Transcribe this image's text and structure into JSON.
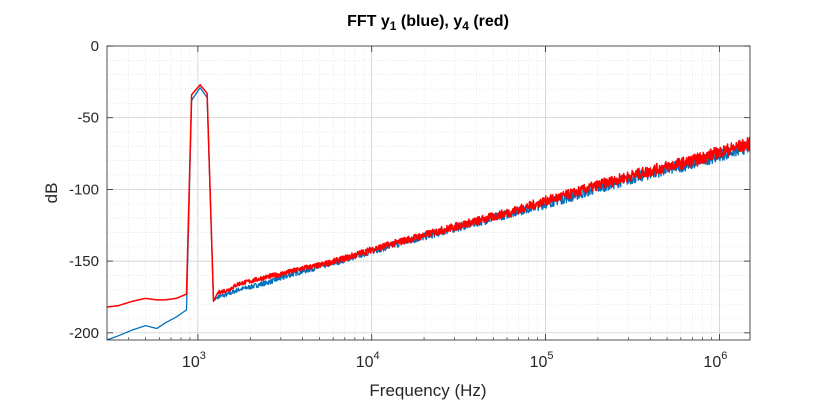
{
  "chart_data": {
    "type": "line",
    "title_parts": [
      {
        "text": "FFT y",
        "sub": false
      },
      {
        "text": "1",
        "sub": true
      },
      {
        "text": " (blue), y",
        "sub": false
      },
      {
        "text": "4",
        "sub": true
      },
      {
        "text": " (red)",
        "sub": false
      }
    ],
    "xlabel": "Frequency (Hz)",
    "ylabel": "dB",
    "x_scale": "log",
    "xlim": [
      300,
      1500000
    ],
    "ylim": [
      -205,
      0
    ],
    "grid": true,
    "minor_grid": true,
    "legend": "none",
    "x_ticks": [
      {
        "value": 1000,
        "base": "10",
        "exp": "3"
      },
      {
        "value": 10000,
        "base": "10",
        "exp": "4"
      },
      {
        "value": 100000,
        "base": "10",
        "exp": "5"
      },
      {
        "value": 1000000,
        "base": "10",
        "exp": "6"
      }
    ],
    "y_ticks": [
      {
        "value": 0,
        "label": "0"
      },
      {
        "value": -50,
        "label": "-50"
      },
      {
        "value": -100,
        "label": "-100"
      },
      {
        "value": -150,
        "label": "-150"
      },
      {
        "value": -200,
        "label": "-200"
      }
    ],
    "series": [
      {
        "color": "#0072BD",
        "noise_amplitude_db": 3.5,
        "points": [
          [
            300,
            -205
          ],
          [
            350,
            -202
          ],
          [
            420,
            -198
          ],
          [
            500,
            -195
          ],
          [
            580,
            -197
          ],
          [
            650,
            -193
          ],
          [
            750,
            -189
          ],
          [
            860,
            -184
          ],
          [
            920,
            -38
          ],
          [
            1030,
            -29
          ],
          [
            1130,
            -36
          ],
          [
            1230,
            -178
          ],
          [
            1300,
            -175
          ],
          [
            1500,
            -173
          ],
          [
            1700,
            -170
          ],
          [
            2000,
            -168
          ],
          [
            2500,
            -165
          ],
          [
            3000,
            -162
          ],
          [
            3500,
            -159
          ],
          [
            4000,
            -157
          ],
          [
            5000,
            -154
          ],
          [
            7000,
            -149
          ],
          [
            10000,
            -143
          ],
          [
            15000,
            -137
          ],
          [
            20000,
            -133
          ],
          [
            30000,
            -127
          ],
          [
            50000,
            -120
          ],
          [
            70000,
            -115
          ],
          [
            100000,
            -110
          ],
          [
            150000,
            -104
          ],
          [
            200000,
            -99
          ],
          [
            300000,
            -93
          ],
          [
            500000,
            -86
          ],
          [
            700000,
            -82
          ],
          [
            1000000,
            -76
          ],
          [
            1500000,
            -70
          ]
        ]
      },
      {
        "color": "#FF0000",
        "noise_amplitude_db": 3.5,
        "points": [
          [
            300,
            -182
          ],
          [
            350,
            -181
          ],
          [
            420,
            -178
          ],
          [
            500,
            -176
          ],
          [
            580,
            -177
          ],
          [
            650,
            -177
          ],
          [
            750,
            -176
          ],
          [
            860,
            -173
          ],
          [
            920,
            -34
          ],
          [
            1030,
            -27
          ],
          [
            1130,
            -33
          ],
          [
            1230,
            -178
          ],
          [
            1300,
            -172
          ],
          [
            1500,
            -170
          ],
          [
            1700,
            -166
          ],
          [
            2000,
            -164
          ],
          [
            2500,
            -161
          ],
          [
            3000,
            -159
          ],
          [
            3500,
            -157
          ],
          [
            4000,
            -155
          ],
          [
            5000,
            -153
          ],
          [
            7000,
            -148
          ],
          [
            10000,
            -142
          ],
          [
            15000,
            -136
          ],
          [
            20000,
            -132
          ],
          [
            30000,
            -126
          ],
          [
            50000,
            -119
          ],
          [
            70000,
            -114
          ],
          [
            100000,
            -108
          ],
          [
            150000,
            -102
          ],
          [
            200000,
            -97
          ],
          [
            300000,
            -91
          ],
          [
            500000,
            -84
          ],
          [
            700000,
            -80
          ],
          [
            1000000,
            -74
          ],
          [
            1500000,
            -68
          ]
        ]
      }
    ]
  }
}
